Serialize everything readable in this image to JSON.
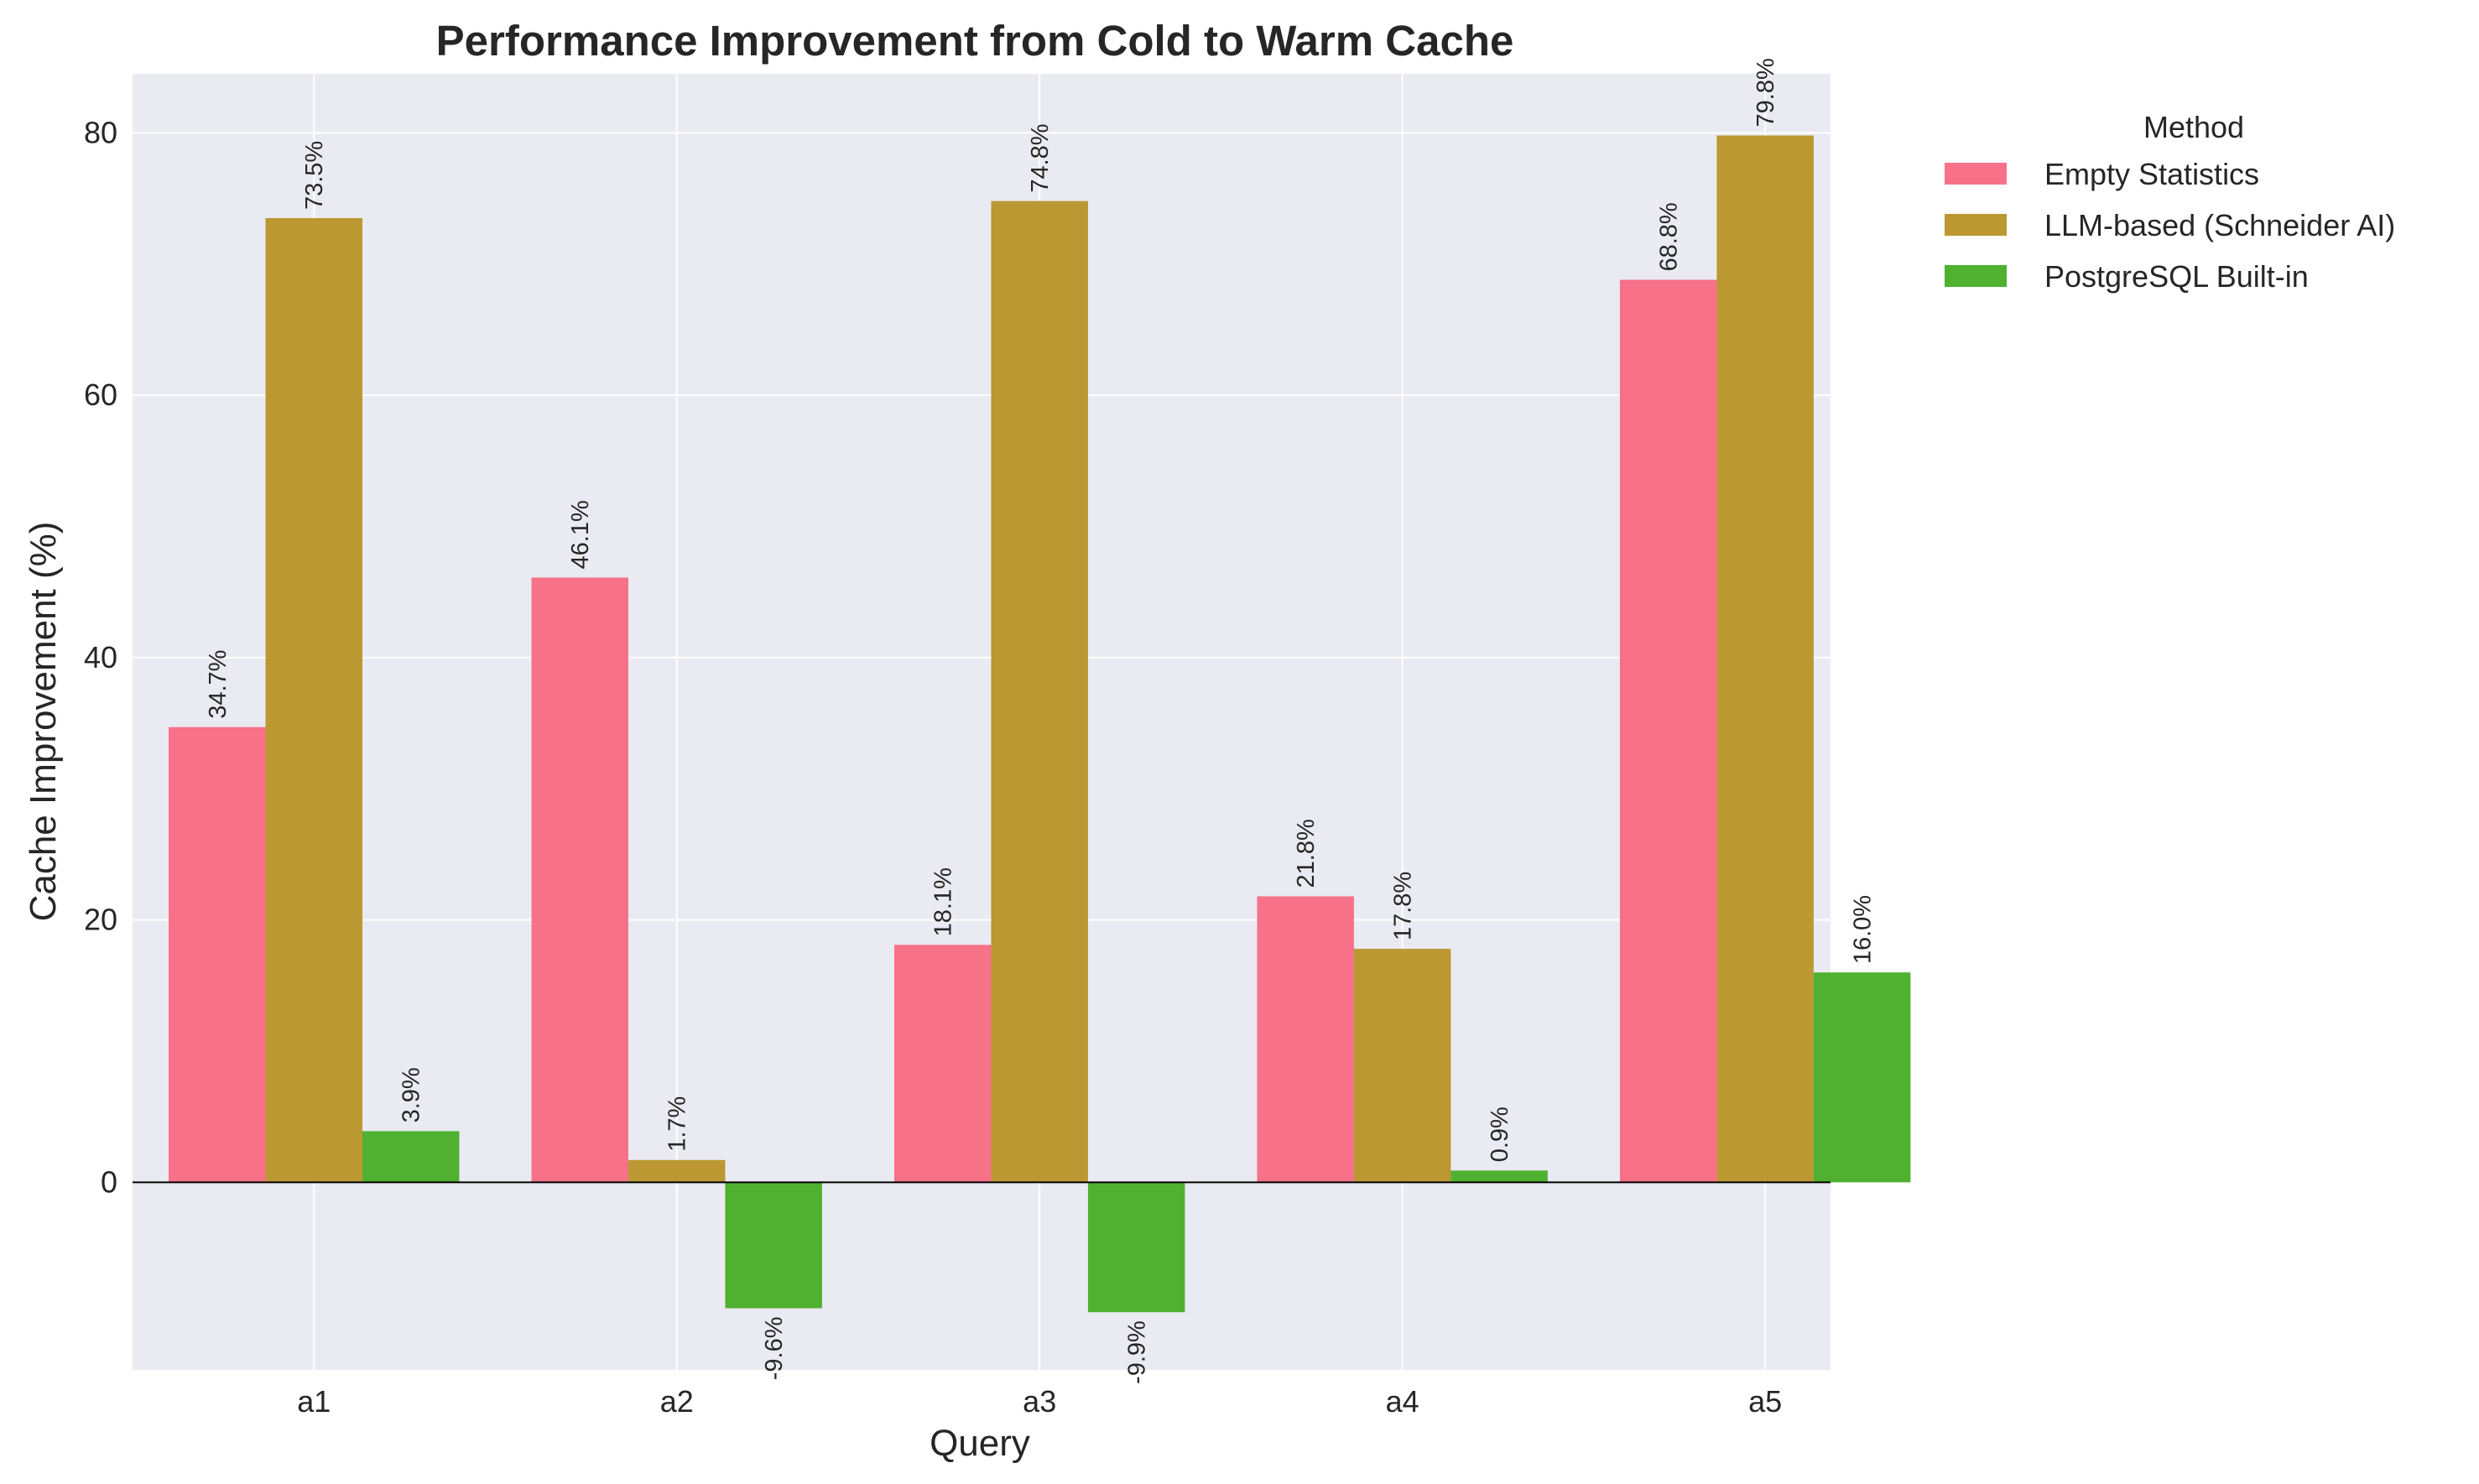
{
  "chart_data": {
    "type": "bar",
    "title": "Performance Improvement from Cold to Warm Cache",
    "xlabel": "Query",
    "ylabel": "Cache Improvement (%)",
    "categories": [
      "a1",
      "a2",
      "a3",
      "a4",
      "a5"
    ],
    "series": [
      {
        "name": "Empty Statistics",
        "color": "#f77189",
        "values": [
          34.7,
          46.1,
          18.1,
          21.8,
          68.8
        ]
      },
      {
        "name": "LLM-based (Schneider AI)",
        "color": "#bb9832",
        "values": [
          73.5,
          1.7,
          74.8,
          17.8,
          79.8
        ]
      },
      {
        "name": "PostgreSQL Built-in",
        "color": "#50b131",
        "values": [
          3.9,
          -9.6,
          -9.9,
          0.9,
          16.0
        ]
      }
    ],
    "data_labels": [
      [
        "34.7%",
        "46.1%",
        "18.1%",
        "21.8%",
        "68.8%"
      ],
      [
        "73.5%",
        "1.7%",
        "74.8%",
        "17.8%",
        "79.8%"
      ],
      [
        "3.9%",
        "-9.6%",
        "-9.9%",
        "0.9%",
        "16.0%"
      ]
    ],
    "yticks": [
      0,
      20,
      40,
      60,
      80
    ],
    "ylim": [
      -14.3,
      84.5
    ],
    "grid": true,
    "legend": {
      "title": "Method",
      "placement": "outside-right"
    },
    "background_color": "#eaeaf2"
  }
}
